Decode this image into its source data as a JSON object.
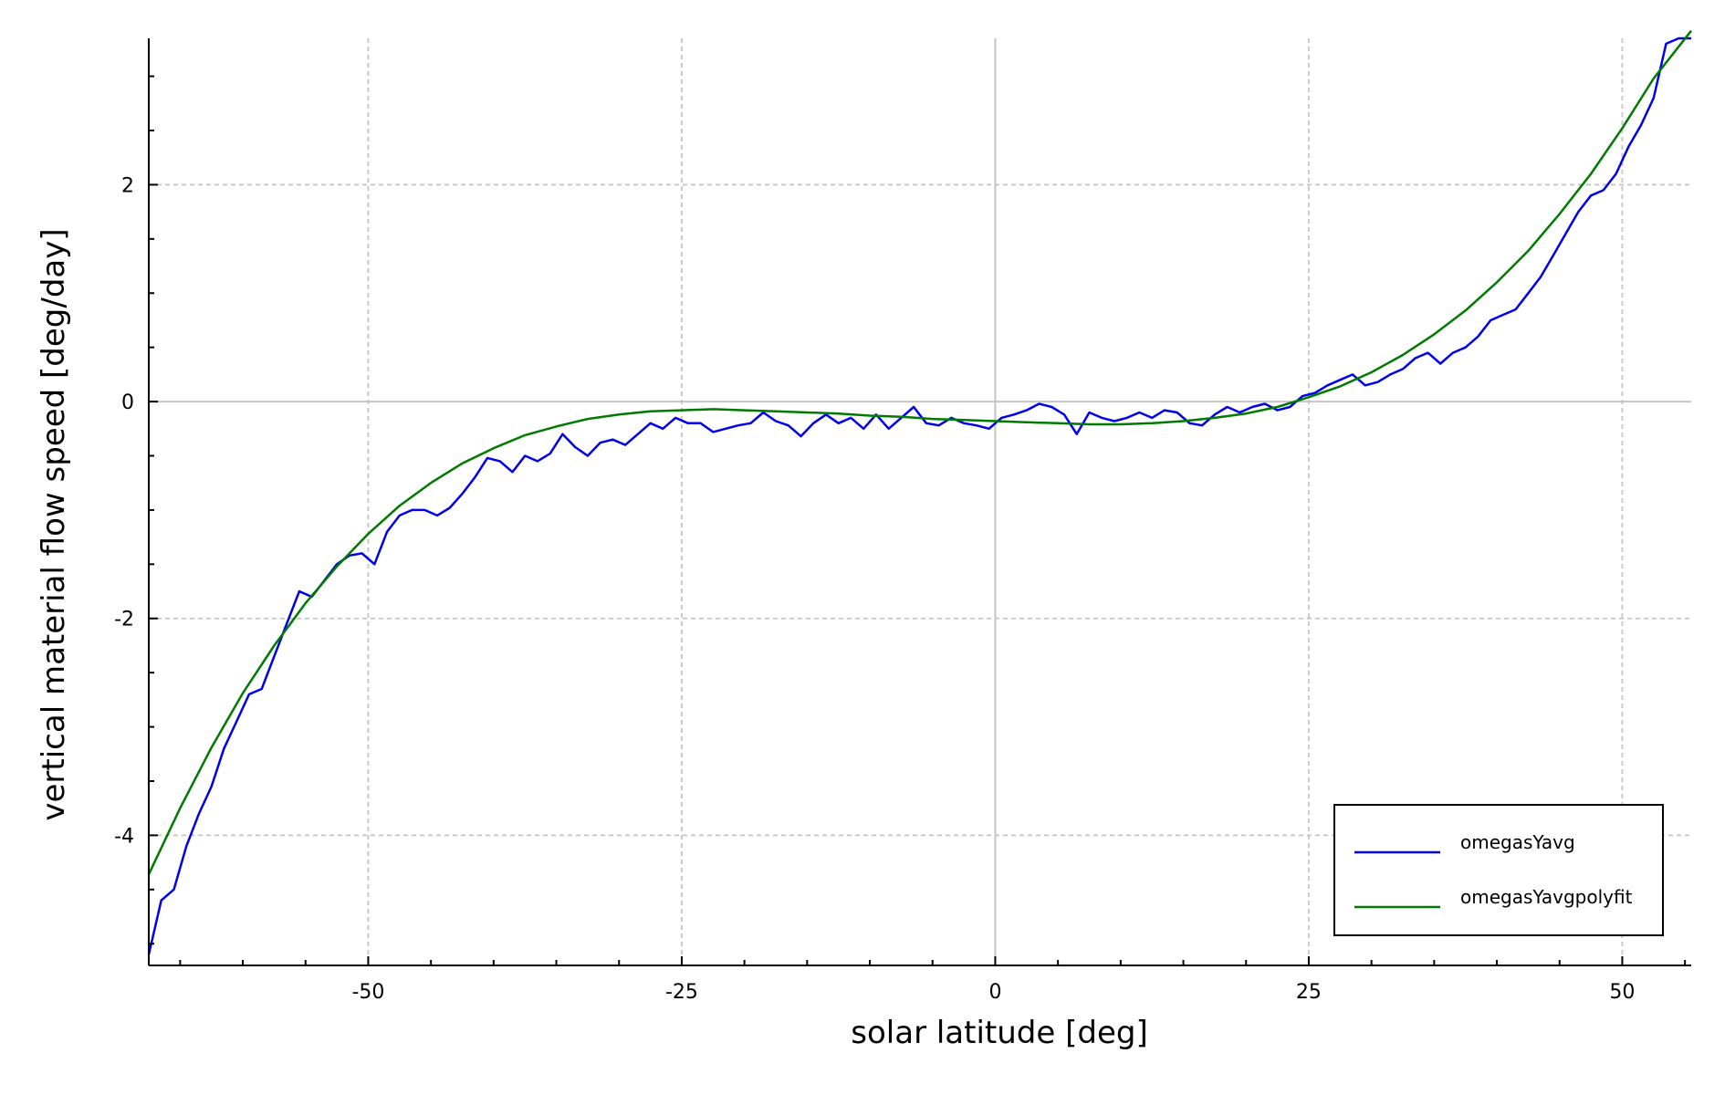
{
  "chart_data": {
    "type": "line",
    "title": "",
    "xlabel": "solar latitude [deg]",
    "ylabel": "vertical material flow speed [deg/day]",
    "xlim": [
      -67.5,
      55.5
    ],
    "ylim": [
      -5.2,
      3.35
    ],
    "xticks": [
      -50,
      -25,
      0,
      25,
      50
    ],
    "yticks": [
      -4,
      -2,
      0,
      2
    ],
    "xtick_labels": [
      "-50",
      "-25",
      "0",
      "25",
      "50"
    ],
    "ytick_labels": [
      "-4",
      "-2",
      "0",
      "2"
    ],
    "grid": true,
    "legend_position": "bottom-right",
    "series": [
      {
        "name": "omegasYavg",
        "color": "#0000ee",
        "x": [
          -67.5,
          -66.5,
          -65.5,
          -64.5,
          -63.5,
          -62.5,
          -61.5,
          -60.5,
          -59.5,
          -58.5,
          -57.5,
          -56.5,
          -55.5,
          -54.5,
          -53.5,
          -52.5,
          -51.5,
          -50.5,
          -49.5,
          -48.5,
          -47.5,
          -46.5,
          -45.5,
          -44.5,
          -43.5,
          -42.5,
          -41.5,
          -40.5,
          -39.5,
          -38.5,
          -37.5,
          -36.5,
          -35.5,
          -34.5,
          -33.5,
          -32.5,
          -31.5,
          -30.5,
          -29.5,
          -28.5,
          -27.5,
          -26.5,
          -25.5,
          -24.5,
          -23.5,
          -22.5,
          -21.5,
          -20.5,
          -19.5,
          -18.5,
          -17.5,
          -16.5,
          -15.5,
          -14.5,
          -13.5,
          -12.5,
          -11.5,
          -10.5,
          -9.5,
          -8.5,
          -7.5,
          -6.5,
          -5.5,
          -4.5,
          -3.5,
          -2.5,
          -1.5,
          -0.5,
          0.5,
          1.5,
          2.5,
          3.5,
          4.5,
          5.5,
          6.5,
          7.5,
          8.5,
          9.5,
          10.5,
          11.5,
          12.5,
          13.5,
          14.5,
          15.5,
          16.5,
          17.5,
          18.5,
          19.5,
          20.5,
          21.5,
          22.5,
          23.5,
          24.5,
          25.5,
          26.5,
          27.5,
          28.5,
          29.5,
          30.5,
          31.5,
          32.5,
          33.5,
          34.5,
          35.5,
          36.5,
          37.5,
          38.5,
          39.5,
          40.5,
          41.5,
          42.5,
          43.5,
          44.5,
          45.5,
          46.5,
          47.5,
          48.5,
          49.5,
          50.5,
          51.5,
          52.5,
          53.5,
          54.5,
          55.5
        ],
        "y": [
          -5.1,
          -4.6,
          -4.5,
          -4.1,
          -3.8,
          -3.55,
          -3.2,
          -2.95,
          -2.7,
          -2.65,
          -2.35,
          -2.05,
          -1.75,
          -1.8,
          -1.65,
          -1.5,
          -1.42,
          -1.4,
          -1.5,
          -1.2,
          -1.05,
          -1.0,
          -1.0,
          -1.05,
          -0.98,
          -0.85,
          -0.7,
          -0.52,
          -0.55,
          -0.65,
          -0.5,
          -0.55,
          -0.48,
          -0.3,
          -0.42,
          -0.5,
          -0.38,
          -0.35,
          -0.4,
          -0.3,
          -0.2,
          -0.25,
          -0.15,
          -0.2,
          -0.2,
          -0.28,
          -0.25,
          -0.22,
          -0.2,
          -0.1,
          -0.18,
          -0.22,
          -0.32,
          -0.2,
          -0.12,
          -0.2,
          -0.15,
          -0.25,
          -0.12,
          -0.25,
          -0.15,
          -0.05,
          -0.2,
          -0.22,
          -0.15,
          -0.2,
          -0.22,
          -0.25,
          -0.15,
          -0.12,
          -0.08,
          -0.02,
          -0.05,
          -0.12,
          -0.3,
          -0.1,
          -0.15,
          -0.18,
          -0.15,
          -0.1,
          -0.15,
          -0.08,
          -0.1,
          -0.2,
          -0.22,
          -0.12,
          -0.05,
          -0.1,
          -0.05,
          -0.02,
          -0.08,
          -0.05,
          0.05,
          0.08,
          0.15,
          0.2,
          0.25,
          0.15,
          0.18,
          0.25,
          0.3,
          0.4,
          0.45,
          0.35,
          0.45,
          0.5,
          0.6,
          0.75,
          0.8,
          0.85,
          1.0,
          1.15,
          1.35,
          1.55,
          1.75,
          1.9,
          1.95,
          2.1,
          2.35,
          2.55,
          2.8,
          3.3,
          3.35,
          3.35
        ],
        "line_width": 2.5
      },
      {
        "name": "omegasYavgpolyfit",
        "color": "#007a00",
        "x": [
          -67.5,
          -65,
          -62.5,
          -60,
          -57.5,
          -55,
          -52.5,
          -50,
          -47.5,
          -45,
          -42.5,
          -40,
          -37.5,
          -35,
          -32.5,
          -30,
          -27.5,
          -25,
          -22.5,
          -20,
          -17.5,
          -15,
          -12.5,
          -10,
          -7.5,
          -5,
          -2.5,
          0,
          2.5,
          5,
          7.5,
          10,
          12.5,
          15,
          17.5,
          20,
          22.5,
          25,
          27.5,
          30,
          32.5,
          35,
          37.5,
          40,
          42.5,
          45,
          47.5,
          50,
          52.5,
          55.5
        ],
        "y": [
          -4.36,
          -3.75,
          -3.19,
          -2.69,
          -2.25,
          -1.86,
          -1.52,
          -1.22,
          -0.96,
          -0.75,
          -0.57,
          -0.43,
          -0.31,
          -0.23,
          -0.16,
          -0.12,
          -0.09,
          -0.08,
          -0.07,
          -0.08,
          -0.09,
          -0.1,
          -0.11,
          -0.13,
          -0.14,
          -0.16,
          -0.17,
          -0.18,
          -0.19,
          -0.2,
          -0.21,
          -0.21,
          -0.2,
          -0.18,
          -0.15,
          -0.11,
          -0.05,
          0.04,
          0.14,
          0.27,
          0.43,
          0.62,
          0.84,
          1.1,
          1.39,
          1.73,
          2.1,
          2.52,
          2.98,
          3.42
        ],
        "line_width": 2.5
      }
    ]
  }
}
